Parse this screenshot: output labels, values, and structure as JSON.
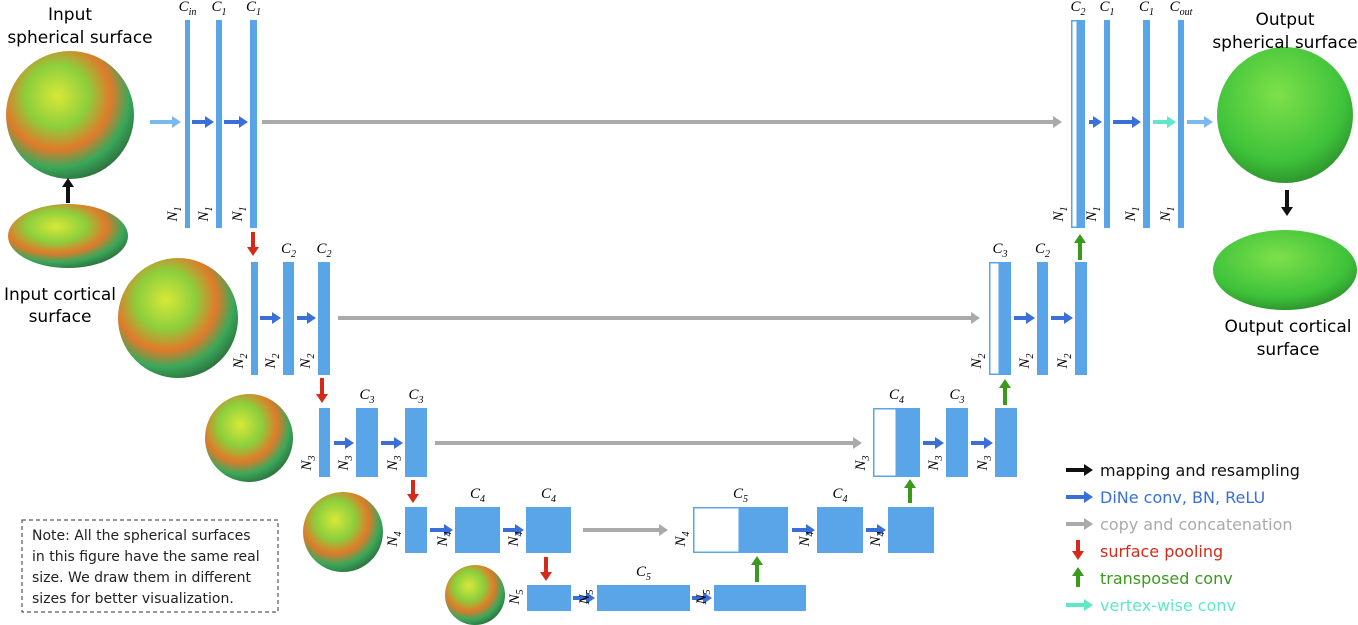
{
  "titles": {
    "input_sphere": [
      "Input",
      "spherical surface"
    ],
    "input_cortical": [
      "Input cortical",
      "surface"
    ],
    "output_sphere": [
      "Output",
      "spherical surface"
    ],
    "output_cortical": [
      "Output cortical",
      "surface"
    ]
  },
  "blocks": [
    {
      "channels": {
        "symbol": "C",
        "index": "in"
      },
      "size": {
        "symbol": "N",
        "index": "1"
      }
    },
    {
      "channels": {
        "symbol": "C",
        "index": "1"
      },
      "size": {
        "symbol": "N",
        "index": "1"
      }
    },
    {
      "channels": {
        "symbol": "C",
        "index": "1"
      },
      "size": {
        "symbol": "N",
        "index": "1"
      }
    },
    {
      "channels": {
        "symbol": "C",
        "index": "2"
      },
      "size": {
        "symbol": "N",
        "index": "1"
      }
    },
    {
      "channels": {
        "symbol": "C",
        "index": "1"
      },
      "size": {
        "symbol": "N",
        "index": "1"
      }
    },
    {
      "channels": {
        "symbol": "C",
        "index": "1"
      },
      "size": {
        "symbol": "N",
        "index": "1"
      }
    },
    {
      "channels": {
        "symbol": "C",
        "index": "out"
      },
      "size": {
        "symbol": "N",
        "index": "1"
      }
    },
    {
      "size": {
        "symbol": "N",
        "index": "2"
      }
    },
    {
      "channels": {
        "symbol": "C",
        "index": "2"
      },
      "size": {
        "symbol": "N",
        "index": "2"
      }
    },
    {
      "channels": {
        "symbol": "C",
        "index": "2"
      },
      "size": {
        "symbol": "N",
        "index": "2"
      }
    },
    {
      "channels": {
        "symbol": "C",
        "index": "3"
      },
      "size": {
        "symbol": "N",
        "index": "2"
      }
    },
    {
      "channels": {
        "symbol": "C",
        "index": "2"
      },
      "size": {
        "symbol": "N",
        "index": "2"
      }
    },
    {
      "size": {
        "symbol": "N",
        "index": "2"
      }
    },
    {
      "size": {
        "symbol": "N",
        "index": "3"
      }
    },
    {
      "channels": {
        "symbol": "C",
        "index": "3"
      },
      "size": {
        "symbol": "N",
        "index": "3"
      }
    },
    {
      "channels": {
        "symbol": "C",
        "index": "3"
      },
      "size": {
        "symbol": "N",
        "index": "3"
      }
    },
    {
      "channels": {
        "symbol": "C",
        "index": "4"
      },
      "size": {
        "symbol": "N",
        "index": "3"
      }
    },
    {
      "channels": {
        "symbol": "C",
        "index": "3"
      },
      "size": {
        "symbol": "N",
        "index": "3"
      }
    },
    {
      "size": {
        "symbol": "N",
        "index": "3"
      }
    },
    {
      "size": {
        "symbol": "N",
        "index": "4"
      }
    },
    {
      "channels": {
        "symbol": "C",
        "index": "4"
      },
      "size": {
        "symbol": "N",
        "index": "4"
      }
    },
    {
      "channels": {
        "symbol": "C",
        "index": "4"
      },
      "size": {
        "symbol": "N",
        "index": "4"
      }
    },
    {
      "channels": {
        "symbol": "C",
        "index": "5"
      },
      "size": {
        "symbol": "N",
        "index": "4"
      }
    },
    {
      "channels": {
        "symbol": "C",
        "index": "4"
      },
      "size": {
        "symbol": "N",
        "index": "4"
      }
    },
    {
      "size": {
        "symbol": "N",
        "index": "4"
      }
    },
    {
      "size": {
        "symbol": "N",
        "index": "5"
      }
    },
    {
      "channels": {
        "symbol": "C",
        "index": "5"
      },
      "size": {
        "symbol": "N",
        "index": "5"
      }
    },
    {
      "size": {
        "symbol": "N",
        "index": "5"
      }
    }
  ],
  "legend": [
    {
      "label": "mapping and resampling",
      "color": "#111111"
    },
    {
      "label": "DiNe conv, BN, ReLU",
      "color": "#3a6fd8"
    },
    {
      "label": "copy and concatenation",
      "color": "#aaaaaa"
    },
    {
      "label": "surface pooling",
      "color": "#d42a1a"
    },
    {
      "label": "transposed conv",
      "color": "#3a9a1c"
    },
    {
      "label": "vertex-wise conv",
      "color": "#5de8c8"
    }
  ],
  "note": [
    "Note: All the spherical surfaces",
    "in this figure have the same real",
    "size. We draw them in different",
    "sizes for better visualization."
  ]
}
